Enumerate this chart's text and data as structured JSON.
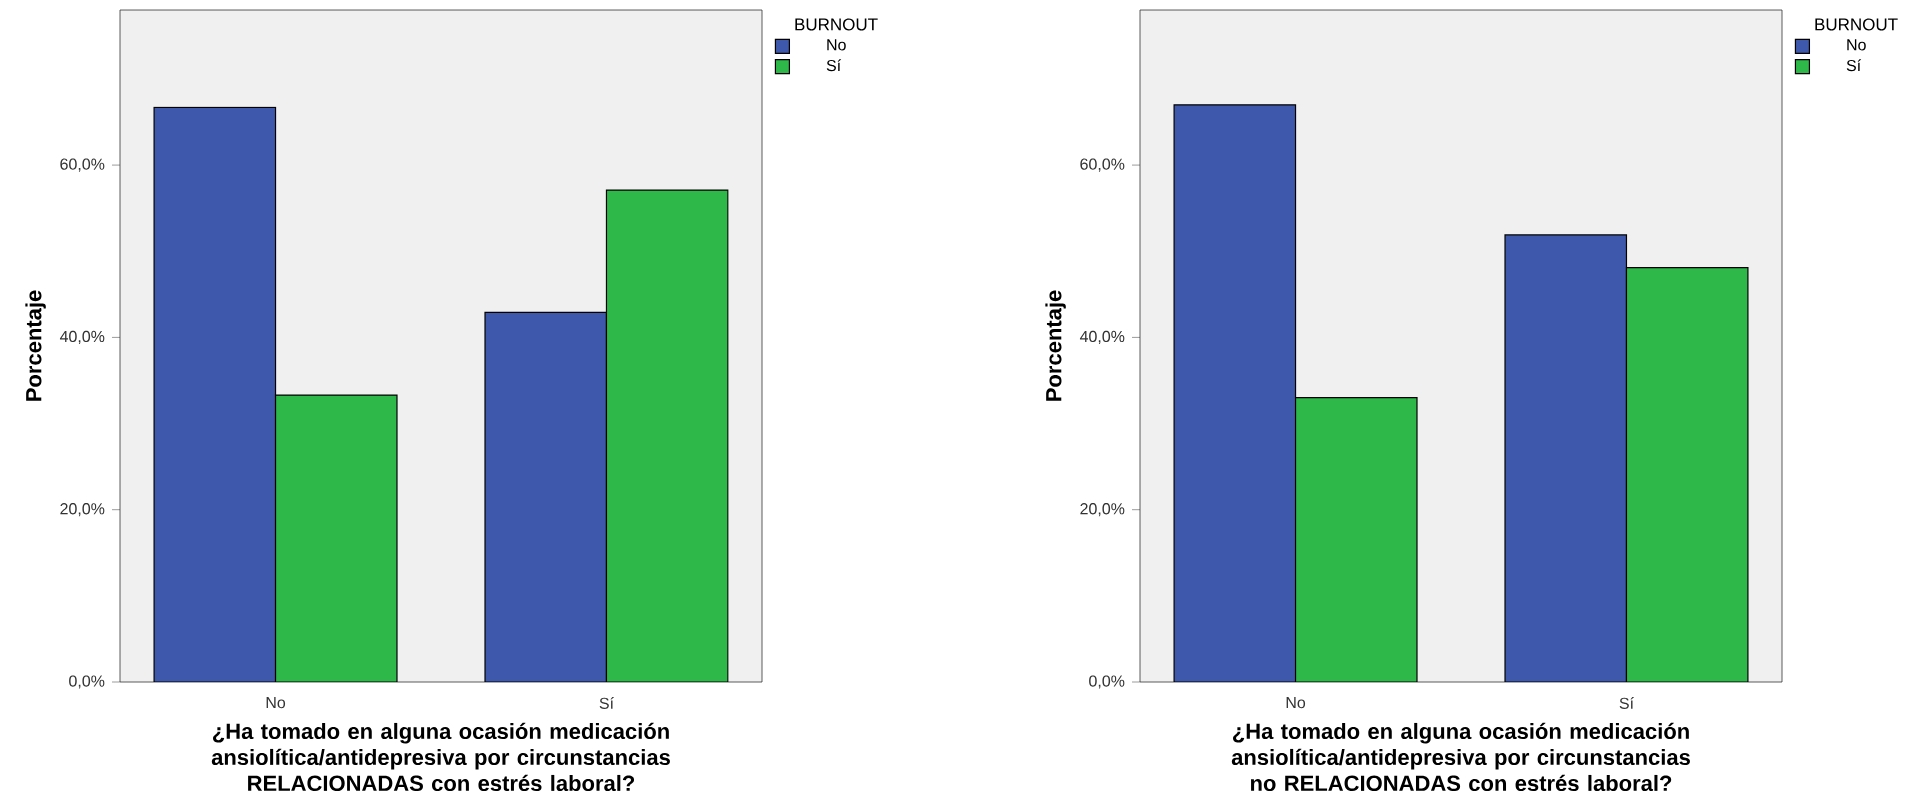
{
  "chart_data": [
    {
      "type": "bar",
      "xlabel": "¿Ha tomado en alguna ocasión medicación ansiolítica/antidepresiva por circunstancias RELACIONADAS con estrés laboral?",
      "ylabel": "Porcentaje",
      "legend_title": "BURNOUT",
      "legend": "right",
      "categories": [
        "No",
        "Sí"
      ],
      "ylim": [
        0,
        78
      ],
      "yticks": [
        {
          "value": 0,
          "label": "0,0%"
        },
        {
          "value": 20,
          "label": "20,0%"
        },
        {
          "value": 40,
          "label": "40,0%"
        },
        {
          "value": 60,
          "label": "60,0%"
        }
      ],
      "series": [
        {
          "name": "No",
          "color": "#3e58ab",
          "values": [
            66.7,
            42.9
          ]
        },
        {
          "name": "Sí",
          "color": "#2eb84a",
          "values": [
            33.3,
            57.1
          ]
        }
      ]
    },
    {
      "type": "bar",
      "xlabel": "¿Ha tomado en alguna ocasión medicación ansiolítica/antidepresiva por circunstancias no RELACIONADAS con estrés laboral?",
      "ylabel": "Porcentaje",
      "legend_title": "BURNOUT",
      "legend": "right",
      "categories": [
        "No",
        "Sí"
      ],
      "ylim": [
        0,
        78
      ],
      "yticks": [
        {
          "value": 0,
          "label": "0,0%"
        },
        {
          "value": 20,
          "label": "20,0%"
        },
        {
          "value": 40,
          "label": "40,0%"
        },
        {
          "value": 60,
          "label": "60,0%"
        }
      ],
      "series": [
        {
          "name": "No",
          "color": "#3e58ab",
          "values": [
            67.0,
            51.9
          ]
        },
        {
          "name": "Sí",
          "color": "#2eb84a",
          "values": [
            33.0,
            48.1
          ]
        }
      ]
    }
  ]
}
